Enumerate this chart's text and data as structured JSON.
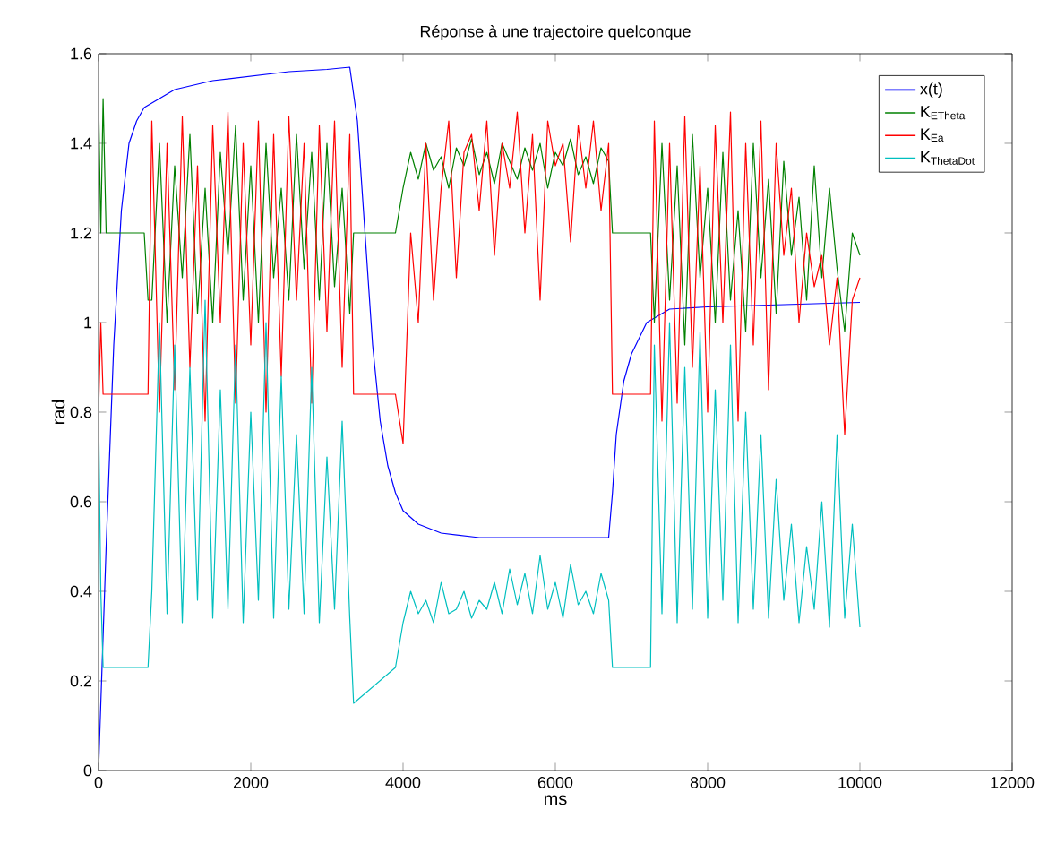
{
  "chart_data": {
    "type": "line",
    "title": "Réponse à une trajectoire quelconque",
    "xlabel": "ms",
    "ylabel": "rad",
    "xlim": [
      0,
      12000
    ],
    "ylim": [
      0,
      1.6
    ],
    "xticks": [
      0,
      2000,
      4000,
      6000,
      8000,
      10000,
      12000
    ],
    "yticks": [
      0,
      0.2,
      0.4,
      0.6,
      0.8,
      1,
      1.2,
      1.4,
      1.6
    ],
    "grid": false,
    "legend": "top right",
    "marker": "none",
    "line_style": "solid",
    "x": [
      0,
      30,
      60,
      100,
      600,
      650,
      700,
      800,
      900,
      1000,
      1100,
      1200,
      1300,
      1400,
      1500,
      1600,
      1700,
      1800,
      1900,
      2000,
      2100,
      2200,
      2300,
      2400,
      2500,
      2600,
      2700,
      2800,
      2900,
      3000,
      3100,
      3200,
      3300,
      3350,
      3900,
      4000,
      4100,
      4200,
      4300,
      4400,
      4500,
      4600,
      4700,
      4800,
      4900,
      5000,
      5100,
      5200,
      5300,
      5400,
      5500,
      5600,
      5700,
      5800,
      5900,
      6000,
      6100,
      6200,
      6300,
      6400,
      6500,
      6600,
      6700,
      6750,
      7250,
      7300,
      7400,
      7500,
      7600,
      7700,
      7800,
      7900,
      8000,
      8100,
      8200,
      8300,
      8400,
      8500,
      8600,
      8700,
      8800,
      8900,
      9000,
      9100,
      9200,
      9300,
      9400,
      9500,
      9600,
      9700,
      9800,
      9900,
      10000
    ],
    "series": [
      {
        "name": "x(t)",
        "color": "#0000ff",
        "x": [
          0,
          100,
          200,
          300,
          400,
          500,
          600,
          800,
          1000,
          1500,
          2000,
          2500,
          3000,
          3300,
          3400,
          3500,
          3600,
          3700,
          3800,
          3900,
          4000,
          4200,
          4500,
          5000,
          6000,
          6700,
          6750,
          6800,
          6900,
          7000,
          7200,
          7500,
          8000,
          9000,
          10000
        ],
        "values": [
          0,
          0.5,
          0.95,
          1.25,
          1.4,
          1.45,
          1.48,
          1.5,
          1.52,
          1.54,
          1.55,
          1.56,
          1.565,
          1.57,
          1.45,
          1.2,
          0.95,
          0.78,
          0.68,
          0.62,
          0.58,
          0.55,
          0.53,
          0.52,
          0.52,
          0.52,
          0.62,
          0.75,
          0.87,
          0.93,
          1.0,
          1.03,
          1.035,
          1.04,
          1.045
        ]
      },
      {
        "name": "K$_{ETheta}$",
        "color": "#008000",
        "values": [
          1.5,
          1.2,
          1.5,
          1.2,
          1.2,
          1.05,
          1.05,
          1.4,
          1.0,
          1.35,
          1.1,
          1.42,
          1.02,
          1.3,
          1.0,
          1.38,
          1.15,
          1.44,
          1.05,
          1.35,
          1.0,
          1.4,
          1.1,
          1.3,
          1.05,
          1.42,
          1.12,
          1.38,
          1.05,
          1.4,
          1.08,
          1.3,
          1.02,
          1.2,
          1.2,
          1.3,
          1.38,
          1.32,
          1.4,
          1.34,
          1.37,
          1.3,
          1.39,
          1.35,
          1.41,
          1.33,
          1.38,
          1.31,
          1.4,
          1.36,
          1.32,
          1.39,
          1.34,
          1.4,
          1.3,
          1.38,
          1.35,
          1.41,
          1.33,
          1.37,
          1.31,
          1.39,
          1.36,
          1.2,
          1.2,
          1.0,
          1.4,
          1.05,
          1.35,
          0.95,
          1.42,
          1.1,
          1.3,
          1.0,
          1.38,
          1.05,
          1.25,
          0.98,
          1.4,
          1.1,
          1.32,
          1.02,
          1.36,
          1.15,
          1.28,
          1.05,
          1.35,
          1.1,
          1.3,
          1.12,
          0.98,
          1.2,
          1.15
        ]
      },
      {
        "name": "K$_{Ea}$",
        "color": "#ff0000",
        "values": [
          0.8,
          1.0,
          0.84,
          0.84,
          0.84,
          0.84,
          1.45,
          0.8,
          1.4,
          0.85,
          1.46,
          0.9,
          1.35,
          0.78,
          1.44,
          1.0,
          1.47,
          0.82,
          1.4,
          0.95,
          1.45,
          0.8,
          1.42,
          0.88,
          1.46,
          1.05,
          1.4,
          0.82,
          1.44,
          0.98,
          1.45,
          0.9,
          1.42,
          0.84,
          0.84,
          0.73,
          1.2,
          1.0,
          1.4,
          1.05,
          1.3,
          1.45,
          1.1,
          1.38,
          1.42,
          1.25,
          1.45,
          1.15,
          1.4,
          1.3,
          1.47,
          1.2,
          1.42,
          1.05,
          1.45,
          1.35,
          1.4,
          1.18,
          1.44,
          1.3,
          1.45,
          1.25,
          1.4,
          0.84,
          0.84,
          1.45,
          0.78,
          1.4,
          0.82,
          1.46,
          0.9,
          1.35,
          0.8,
          1.44,
          1.0,
          1.47,
          0.78,
          1.4,
          0.95,
          1.45,
          0.85,
          1.4,
          1.15,
          1.3,
          1.0,
          1.2,
          1.08,
          1.15,
          0.95,
          1.1,
          0.75,
          1.05,
          1.1
        ]
      },
      {
        "name": "K$_{ThetaDot}$",
        "color": "#00bfbf",
        "values": [
          0.8,
          0.4,
          0.23,
          0.23,
          0.23,
          0.23,
          0.4,
          1.0,
          0.35,
          0.95,
          0.33,
          0.9,
          0.38,
          1.05,
          0.34,
          0.85,
          0.36,
          0.95,
          0.33,
          0.8,
          0.38,
          1.0,
          0.34,
          0.88,
          0.36,
          0.75,
          0.35,
          0.9,
          0.33,
          0.7,
          0.36,
          0.78,
          0.34,
          0.15,
          0.23,
          0.33,
          0.4,
          0.35,
          0.38,
          0.33,
          0.42,
          0.35,
          0.36,
          0.4,
          0.34,
          0.38,
          0.36,
          0.42,
          0.35,
          0.45,
          0.37,
          0.44,
          0.35,
          0.48,
          0.36,
          0.42,
          0.34,
          0.46,
          0.37,
          0.4,
          0.35,
          0.44,
          0.38,
          0.23,
          0.23,
          0.95,
          0.35,
          1.0,
          0.33,
          0.9,
          0.36,
          0.98,
          0.34,
          0.85,
          0.38,
          0.95,
          0.33,
          0.8,
          0.36,
          0.75,
          0.34,
          0.65,
          0.38,
          0.55,
          0.33,
          0.5,
          0.36,
          0.6,
          0.32,
          0.75,
          0.34,
          0.55,
          0.32
        ]
      }
    ]
  }
}
